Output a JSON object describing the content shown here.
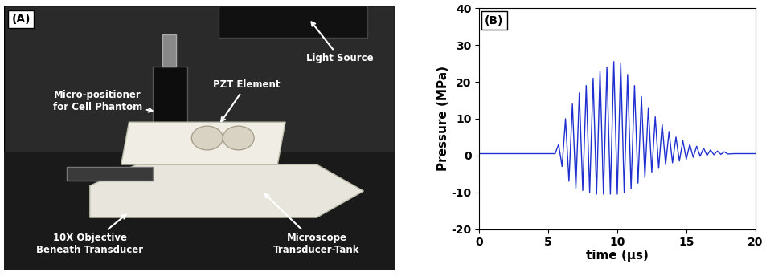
{
  "photo": {
    "label": "(A)",
    "callouts": [
      "Light Source",
      "Micro-positioner\nfor Cell Phantom",
      "PZT Element",
      "10X Objective\nBeneath Transducer",
      "Microscope\nTransducer-Tank"
    ]
  },
  "chart_data": {
    "type": "line",
    "title": "(B)",
    "x_label": "time (µs)",
    "y_label": "Pressure (MPa)",
    "x": [
      0,
      1,
      2,
      3,
      4,
      5,
      5.5,
      5.75,
      6.0,
      6.25,
      6.5,
      6.75,
      7.0,
      7.25,
      7.5,
      7.75,
      8.0,
      8.25,
      8.5,
      8.75,
      9.0,
      9.25,
      9.5,
      9.75,
      10.0,
      10.25,
      10.5,
      10.75,
      11.0,
      11.25,
      11.5,
      11.75,
      12.0,
      12.25,
      12.5,
      12.75,
      13.0,
      13.25,
      13.5,
      13.75,
      14.0,
      14.25,
      14.5,
      14.75,
      15.0,
      15.25,
      15.5,
      15.75,
      16.0,
      16.25,
      16.5,
      16.75,
      17.0,
      17.25,
      17.5,
      17.75,
      18.0,
      18.5,
      19,
      19.5,
      20
    ],
    "values": [
      0.5,
      0.5,
      0.5,
      0.5,
      0.5,
      0.5,
      0.5,
      3,
      -3,
      10,
      -7,
      14,
      -9,
      17,
      -9.5,
      19,
      -10,
      21,
      -10.5,
      23,
      -10.5,
      24,
      -10.5,
      25.5,
      -10.5,
      25,
      -10,
      22,
      -9,
      19,
      -7.5,
      16,
      -6,
      13,
      -4.5,
      10.5,
      -3.5,
      8.5,
      -2.5,
      6.5,
      -2,
      5,
      -1.5,
      4,
      -1,
      3,
      -0.5,
      2.5,
      -0.2,
      2,
      0,
      1.5,
      0.2,
      1.2,
      0.3,
      1,
      0.4,
      0.5,
      0.5,
      0.5,
      0.5
    ],
    "color": "#1f2fd0",
    "xlim": [
      0,
      20
    ],
    "xticks": [
      0,
      5,
      10,
      15,
      20
    ],
    "ylim": [
      -20,
      40
    ],
    "yticks": [
      -20,
      -10,
      0,
      10,
      20,
      30,
      40
    ],
    "grid": false
  }
}
